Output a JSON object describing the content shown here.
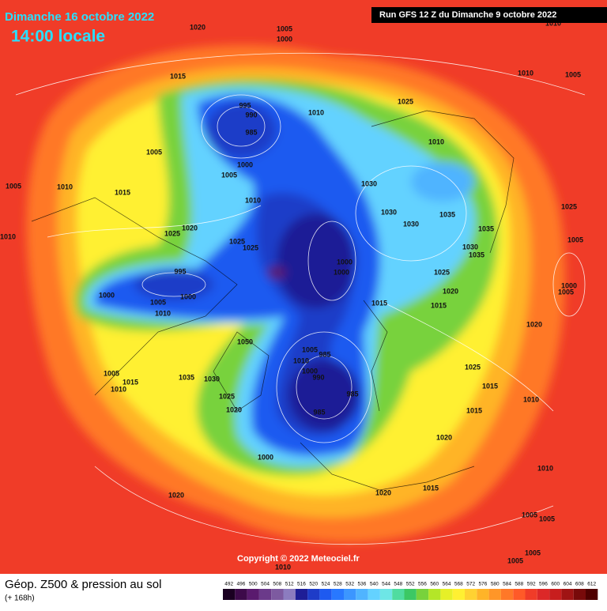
{
  "header": {
    "date": "Dimanche 16 octobre 2022",
    "time": "14:00 locale",
    "run": "Run GFS 12 Z du Dimanche 9 octobre 2022"
  },
  "footer": {
    "title": "Géop. Z500 & pression au sol",
    "subtitle": "(+ 168h)",
    "copyright": "Copyright © 2022 Meteociel.fr"
  },
  "colorbar": {
    "ticks": [
      492,
      496,
      500,
      504,
      508,
      512,
      516,
      520,
      524,
      528,
      532,
      536,
      540,
      544,
      548,
      552,
      556,
      560,
      564,
      568,
      572,
      576,
      580,
      584,
      588,
      592,
      596,
      600,
      604,
      608,
      612
    ],
    "colors": [
      "#1a0021",
      "#3d0a4a",
      "#5a1a6e",
      "#6b3a8a",
      "#7d5aa0",
      "#8c7cbf",
      "#1e1e96",
      "#1e3cc8",
      "#1e5af0",
      "#2878ff",
      "#3c96ff",
      "#50b4ff",
      "#64d2ff",
      "#6ee6e6",
      "#50dca0",
      "#3cc864",
      "#78d23c",
      "#b4e628",
      "#e6f028",
      "#fff032",
      "#ffd232",
      "#ffb428",
      "#ff9628",
      "#ff7828",
      "#ff5a28",
      "#f03c28",
      "#dc2828",
      "#c81e1e",
      "#a01414",
      "#780a0a",
      "#500000"
    ]
  },
  "pressure_labels": [
    1020,
    1005,
    1000,
    1010,
    1010,
    1005,
    1015,
    995,
    990,
    985,
    1010,
    1025,
    1010,
    1005,
    1000,
    1005,
    1005,
    1010,
    1015,
    1030,
    1010,
    1030,
    1035,
    1030,
    1035,
    1025,
    1025,
    1020,
    1010,
    1005,
    1025,
    1025,
    1030,
    1035,
    1000,
    1000,
    995,
    1025,
    1000,
    1000,
    1005,
    1010,
    1020,
    1015,
    1015,
    1000,
    1005,
    1020,
    1050,
    1005,
    985,
    1010,
    1000,
    990,
    1005,
    1015,
    1010,
    1035,
    1030,
    1025,
    1015,
    1025,
    985,
    1020,
    985,
    1015,
    1010,
    1020,
    1000,
    1010,
    1020,
    1020,
    1015,
    1005,
    1005,
    1010,
    1005,
    1005
  ]
}
